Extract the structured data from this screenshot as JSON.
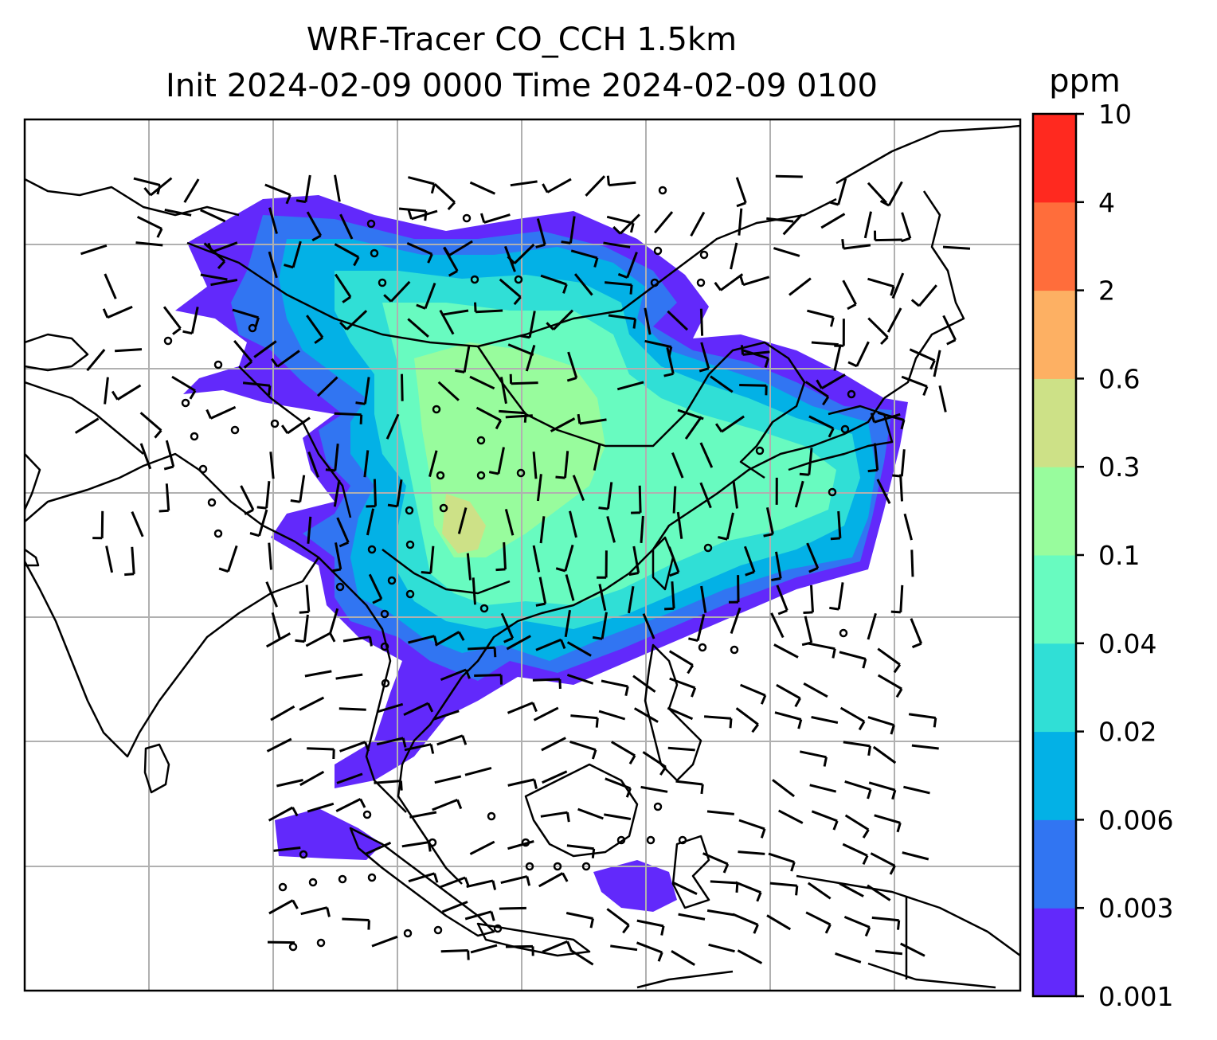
{
  "title": {
    "line1": "WRF-Tracer CO_CCH 1.5km",
    "line2": "Init 2024-02-09 0000 Time 2024-02-09 0100"
  },
  "colorbar": {
    "unit": "ppm",
    "labels": [
      "0.001",
      "0.003",
      "0.006",
      "0.02",
      "0.04",
      "0.1",
      "0.3",
      "0.6",
      "2",
      "4",
      "10"
    ],
    "colors": [
      "#6229fb",
      "#3175f2",
      "#03b1e6",
      "#30dfd6",
      "#68fbc0",
      "#98fc9d",
      "#cde187",
      "#fdb063",
      "#ff6d3b",
      "#ff291f"
    ]
  },
  "map": {
    "colors": {
      "coast": "#000000",
      "grid": "#b0b0b0",
      "barb": "#000000"
    }
  }
}
